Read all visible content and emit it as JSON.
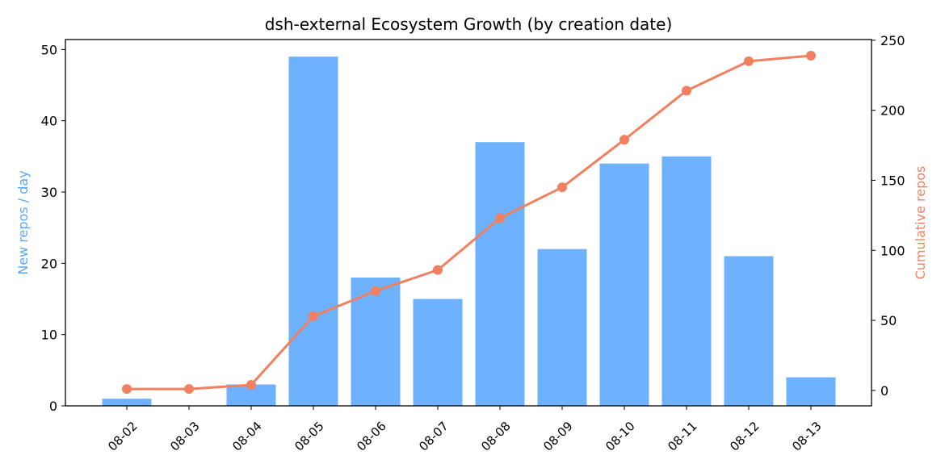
{
  "chart_data": {
    "type": "bar",
    "title": "dsh-external Ecosystem Growth (by creation date)",
    "categories": [
      "08-02",
      "08-03",
      "08-04",
      "08-05",
      "08-06",
      "08-07",
      "08-08",
      "08-09",
      "08-10",
      "08-11",
      "08-12",
      "08-13"
    ],
    "series": [
      {
        "type": "bar",
        "axis": "left",
        "color": "#6eb1fc",
        "values": [
          1,
          0,
          3,
          49,
          18,
          15,
          37,
          22,
          34,
          35,
          21,
          4
        ]
      },
      {
        "type": "line",
        "axis": "right",
        "color": "#f08060",
        "values": [
          1,
          1,
          4,
          53,
          71,
          86,
          123,
          145,
          179,
          214,
          235,
          239
        ]
      }
    ],
    "y_left": {
      "label": "New repos / day",
      "color": "#5aa7f5",
      "ylim": [
        0,
        51.4
      ],
      "ticks": [
        0,
        10,
        20,
        30,
        40,
        50
      ]
    },
    "y_right": {
      "label": "Cumulative repos",
      "color": "#f08060",
      "ylim": [
        -11,
        250.5
      ],
      "ticks": [
        0,
        50,
        100,
        150,
        200,
        250
      ]
    },
    "grid": false,
    "legend": "none"
  }
}
